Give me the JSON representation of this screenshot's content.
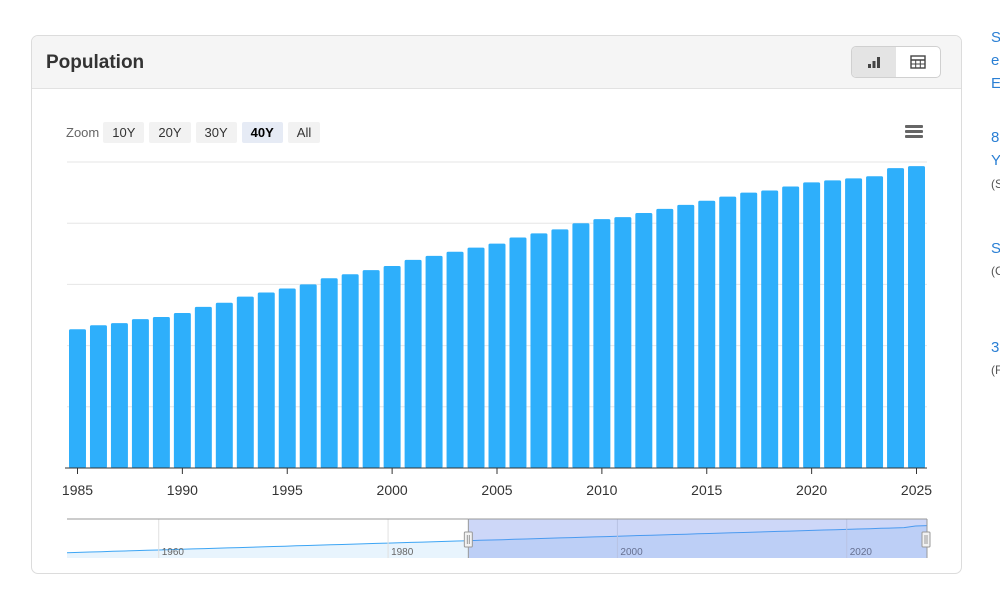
{
  "panel": {
    "title": "Population"
  },
  "view_toggle": {
    "chart_icon": "bar-chart-icon",
    "table_icon": "table-icon"
  },
  "zoom": {
    "label": "Zoom",
    "buttons": [
      "10Y",
      "20Y",
      "30Y",
      "40Y",
      "All"
    ],
    "active": "40Y"
  },
  "menu": {
    "icon": "hamburger-menu-icon"
  },
  "chart_data": {
    "type": "bar",
    "title": "",
    "xlabel": "",
    "ylabel": "",
    "x": [
      1985,
      1986,
      1987,
      1988,
      1989,
      1990,
      1991,
      1992,
      1993,
      1994,
      1995,
      1996,
      1997,
      1998,
      1999,
      2000,
      2001,
      2002,
      2003,
      2004,
      2005,
      2006,
      2007,
      2008,
      2009,
      2010,
      2011,
      2012,
      2013,
      2014,
      2015,
      2016,
      2017,
      2018,
      2019,
      2020,
      2021,
      2022,
      2023,
      2024,
      2025
    ],
    "values": [
      0.68,
      0.7,
      0.71,
      0.73,
      0.74,
      0.76,
      0.79,
      0.81,
      0.84,
      0.86,
      0.88,
      0.9,
      0.93,
      0.95,
      0.97,
      0.99,
      1.02,
      1.04,
      1.06,
      1.08,
      1.1,
      1.13,
      1.15,
      1.17,
      1.2,
      1.22,
      1.23,
      1.25,
      1.27,
      1.29,
      1.31,
      1.33,
      1.35,
      1.36,
      1.38,
      1.4,
      1.41,
      1.42,
      1.43,
      1.47,
      1.48
    ],
    "value_unit": "relative (no y-axis labels shown)",
    "ylim": [
      0,
      1.5
    ],
    "x_tick_labels": [
      "1985",
      "1990",
      "1995",
      "2000",
      "2005",
      "2010",
      "2015",
      "2020",
      "2025"
    ],
    "grid": true,
    "bar_color": "#2eaffb",
    "navigator": {
      "tick_labels": [
        "1960",
        "1980",
        "2000",
        "2020"
      ],
      "selected_range": [
        1985,
        2025
      ]
    }
  },
  "sidebar": {
    "lines": [
      {
        "text": "S",
        "kind": "link"
      },
      {
        "text": "e",
        "kind": "link"
      },
      {
        "text": "E",
        "kind": "link"
      },
      {
        "text": "8",
        "kind": "link"
      },
      {
        "text": "Y",
        "kind": "link"
      },
      {
        "text": "(S",
        "kind": "note"
      },
      {
        "text": "S",
        "kind": "link"
      },
      {
        "text": "(C",
        "kind": "note"
      },
      {
        "text": "3",
        "kind": "link"
      },
      {
        "text": "(F",
        "kind": "note"
      }
    ]
  }
}
